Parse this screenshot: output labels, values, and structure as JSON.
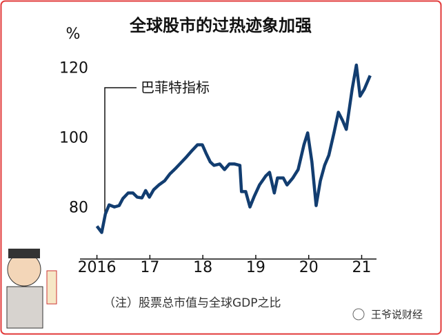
{
  "chart_data": {
    "type": "line",
    "title": "全球股市的过热迹象加强",
    "y_unit": "%",
    "annotation": "巴菲特指标",
    "note": "（注）股票总市值与全球GDP之比",
    "watermark": "王爷说财经",
    "x": [
      2016.0,
      2016.09,
      2016.16,
      2016.23,
      2016.33,
      2016.42,
      2016.49,
      2016.59,
      2016.68,
      2016.76,
      2016.85,
      2016.92,
      2016.99,
      2017.07,
      2017.17,
      2017.28,
      2017.38,
      2017.49,
      2017.59,
      2017.69,
      2017.8,
      2017.9,
      2017.99,
      2018.06,
      2018.14,
      2018.21,
      2018.32,
      2018.41,
      2018.5,
      2018.6,
      2018.7,
      2018.73,
      2018.81,
      2018.89,
      2018.97,
      2019.07,
      2019.19,
      2019.26,
      2019.35,
      2019.41,
      2019.52,
      2019.59,
      2019.7,
      2019.8,
      2019.91,
      2019.98,
      2020.06,
      2020.14,
      2020.22,
      2020.3,
      2020.38,
      2020.48,
      2020.56,
      2020.64,
      2020.71,
      2020.82,
      2020.9,
      2020.97,
      2021.05,
      2021.16
    ],
    "series": [
      {
        "name": "巴菲特指标",
        "color": "#123d70",
        "values": [
          74.9,
          73.1,
          78.4,
          81,
          80.4,
          80.8,
          82.8,
          84.4,
          84.4,
          83.2,
          83,
          85.1,
          83.2,
          85.3,
          86.7,
          87.9,
          89.9,
          91.5,
          93.1,
          94.7,
          96.6,
          98.2,
          98.2,
          95.8,
          93.3,
          92.3,
          92.7,
          91.1,
          92.7,
          92.7,
          92.3,
          84.8,
          84.8,
          80.4,
          83.4,
          86.7,
          89.3,
          90.3,
          84.4,
          88.7,
          88.7,
          86.7,
          88.7,
          91.1,
          98.2,
          101.6,
          93.3,
          80.8,
          87.9,
          92.3,
          95.2,
          101.8,
          107.5,
          105.1,
          102.6,
          114.1,
          121,
          112.1,
          114.1,
          118
        ]
      }
    ],
    "xlim": [
      2015.68,
      2021.28
    ],
    "xticks": [
      {
        "value": 2016,
        "label": "2016"
      },
      {
        "value": 2017,
        "label": "17"
      },
      {
        "value": 2018,
        "label": "18"
      },
      {
        "value": 2019,
        "label": "19"
      },
      {
        "value": 2020,
        "label": "20"
      },
      {
        "value": 2021,
        "label": "21"
      }
    ],
    "ylim": [
      65.5,
      125
    ],
    "yticks": [
      80,
      100,
      120
    ],
    "grid": false
  }
}
